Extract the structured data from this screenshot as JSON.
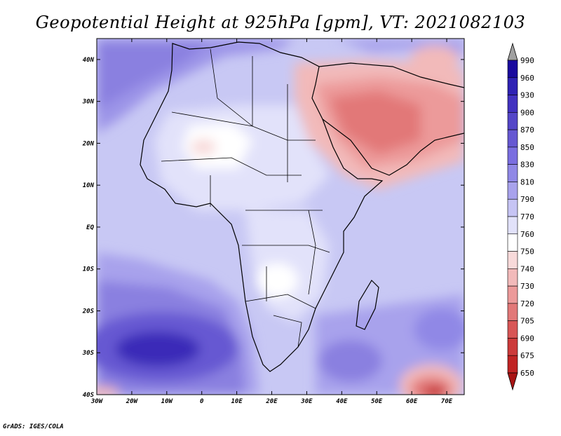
{
  "title": "Geopotential Height at 925hPa [gpm], VT: 2021082103",
  "credit": "GrADS: IGES/COLA",
  "map": {
    "lon_min": -30,
    "lon_max": 75,
    "lat_min": -40,
    "lat_max": 45,
    "lat_labels": [
      "40N",
      "30N",
      "20N",
      "10N",
      "EQ",
      "10S",
      "20S",
      "30S",
      "40S"
    ],
    "lat_values": [
      40,
      30,
      20,
      10,
      0,
      -10,
      -20,
      -30,
      -40
    ],
    "lon_labels": [
      "30W",
      "20W",
      "10W",
      "0",
      "10E",
      "20E",
      "30E",
      "40E",
      "50E",
      "60E",
      "70E"
    ],
    "lon_values": [
      -30,
      -20,
      -10,
      0,
      10,
      20,
      30,
      40,
      50,
      60,
      70
    ],
    "background_color": "#c8c8f4"
  },
  "legend": {
    "levels": [
      "990",
      "960",
      "930",
      "900",
      "870",
      "850",
      "830",
      "810",
      "790",
      "770",
      "760",
      "750",
      "740",
      "730",
      "720",
      "705",
      "690",
      "675",
      "650"
    ],
    "colors": [
      "#1a0a9e",
      "#2f22b4",
      "#4232c0",
      "#5446c8",
      "#6658d2",
      "#7a6ee0",
      "#9088e6",
      "#a8a2ec",
      "#c6c4f4",
      "#e2e2fa",
      "#ffffff",
      "#f8dada",
      "#f2baba",
      "#ec9a9a",
      "#e27878",
      "#d85656",
      "#cc3a3a",
      "#c02424",
      "#a81414"
    ]
  }
}
